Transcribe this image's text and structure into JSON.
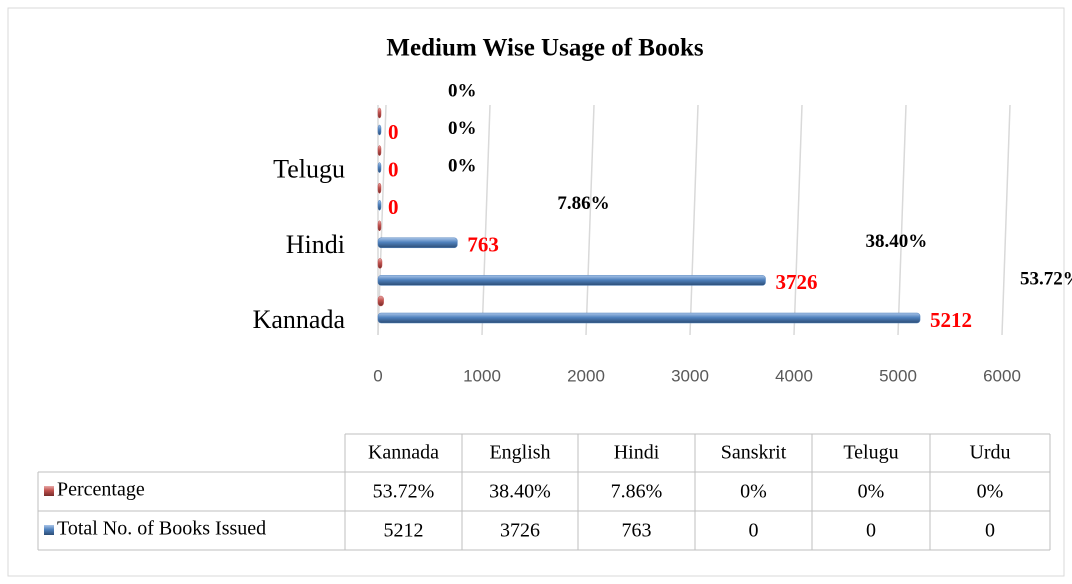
{
  "chart_data": {
    "type": "bar",
    "orientation": "horizontal",
    "title": "Medium Wise Usage of Books",
    "categories": [
      "Kannada",
      "English",
      "Hindi",
      "Sanskrit",
      "Telugu",
      "Urdu"
    ],
    "series": [
      {
        "name": "Percentage",
        "color": "#c0504d",
        "values": [
          53.72,
          38.4,
          7.86,
          0,
          0,
          0
        ],
        "value_labels": [
          "53.72%",
          "38.40%",
          "7.86%",
          "0%",
          "0%",
          "0%"
        ]
      },
      {
        "name": "Total No. of Books Issued",
        "color": "#4f81bd",
        "values": [
          5212,
          3726,
          763,
          0,
          0,
          0
        ]
      }
    ],
    "xlim": [
      0,
      6000
    ],
    "xticks": [
      0,
      1000,
      2000,
      3000,
      4000,
      5000,
      6000
    ],
    "grid": true
  }
}
